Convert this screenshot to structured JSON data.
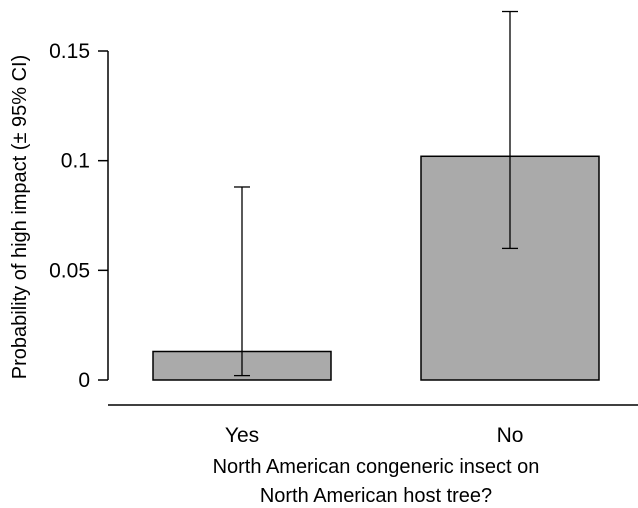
{
  "chart_data": {
    "type": "bar",
    "categories": [
      "Yes",
      "No"
    ],
    "values": [
      0.013,
      0.102
    ],
    "error_bars": [
      {
        "lower": 0.002,
        "upper": 0.088
      },
      {
        "lower": 0.06,
        "upper": 0.168
      }
    ],
    "ylabel": "Probability of high impact (± 95% CI)",
    "xlabel_lines": [
      "North American congeneric insect on",
      "North American host tree?"
    ],
    "yticks": [
      0,
      0.05,
      0.1,
      0.15
    ],
    "ytick_labels": [
      "0",
      "0.05",
      "0.1",
      "0.15"
    ],
    "ylim": [
      0,
      0.175
    ],
    "bar_color": "#aaaaaa",
    "grid": false
  }
}
